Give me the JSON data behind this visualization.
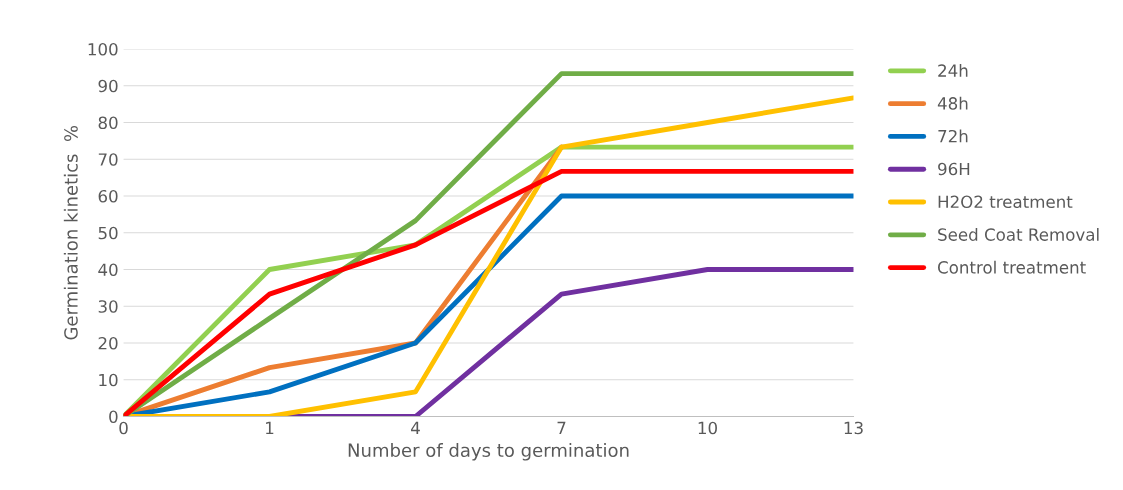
{
  "chart_data": {
    "type": "line",
    "xlabel": "Number of days to germination",
    "ylabel": "Germination kinetics  %",
    "categories": [
      "0",
      "1",
      "4",
      "7",
      "10",
      "13"
    ],
    "series": [
      {
        "name": "24h",
        "color": "#92d050",
        "values": [
          0,
          40,
          46.7,
          73.3,
          73.3,
          73.3
        ]
      },
      {
        "name": "48h",
        "color": "#ed7d31",
        "values": [
          0,
          13.3,
          20,
          73.3,
          null,
          null
        ]
      },
      {
        "name": "72h",
        "color": "#0070c0",
        "values": [
          0,
          6.7,
          20,
          60,
          60,
          60
        ]
      },
      {
        "name": "96H",
        "color": "#7030a0",
        "values": [
          0,
          0,
          0,
          33.3,
          40,
          40
        ]
      },
      {
        "name": "H2O2 treatment",
        "color": "#ffc000",
        "values": [
          0,
          0,
          6.7,
          73.3,
          80,
          86.7
        ]
      },
      {
        "name": "Seed Coat Removal",
        "color": "#70ad47",
        "values": [
          0,
          26.7,
          53.3,
          93.3,
          93.3,
          93.3
        ]
      },
      {
        "name": "Control treatment",
        "color": "#ff0000",
        "values": [
          0,
          33.3,
          46.7,
          66.7,
          66.7,
          66.7
        ]
      }
    ],
    "ylim": [
      0,
      100
    ],
    "yticks": [
      0,
      10,
      20,
      30,
      40,
      50,
      60,
      70,
      80,
      90,
      100
    ],
    "grid": "y",
    "legend": "right",
    "marker": "none",
    "line_style": "solid"
  }
}
